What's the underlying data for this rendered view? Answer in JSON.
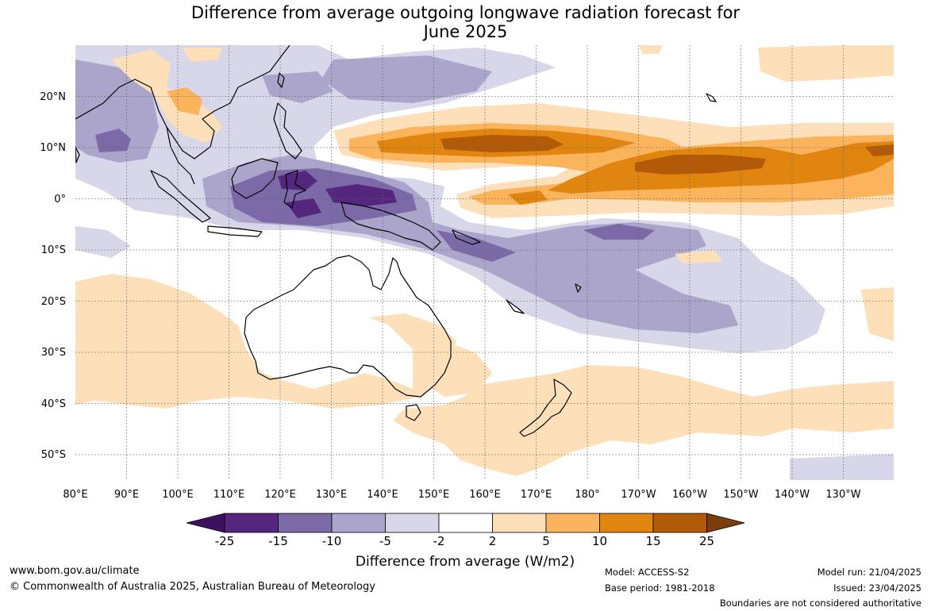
{
  "title_line1": "Difference from average outgoing longwave radiation forecast for",
  "title_line2": "June 2025",
  "map": {
    "lon_labels": [
      "80°E",
      "90°E",
      "100°E",
      "110°E",
      "120°E",
      "130°E",
      "140°E",
      "150°E",
      "160°E",
      "170°E",
      "180°",
      "170°W",
      "160°W",
      "150°W",
      "140°W",
      "130°W"
    ],
    "lat_labels": [
      "20°N",
      "10°N",
      "0°",
      "10°S",
      "20°S",
      "30°S",
      "40°S",
      "50°S"
    ],
    "lon_range": [
      80,
      235
    ],
    "lat_range": [
      -55,
      30
    ],
    "gridlines": true
  },
  "colorbar": {
    "ticks": [
      "-25",
      "-15",
      "-10",
      "-5",
      "-2",
      "2",
      "5",
      "10",
      "15",
      "25"
    ],
    "colors": [
      "#3d1160",
      "#55267e",
      "#7b6aa7",
      "#aba5cc",
      "#d8d7ea",
      "#ffffff",
      "#fde0b9",
      "#fcb45c",
      "#e0850f",
      "#b25a08",
      "#7b3d0a"
    ],
    "label": "Difference from average (W/m2)"
  },
  "footer": {
    "website": "www.bom.gov.au/climate",
    "copyright": "© Commonwealth of Australia 2025, Australian Bureau of Meteorology",
    "model": "Model: ACCESS-S2",
    "base_period": "Base period: 1981-2018",
    "model_run": "Model run: 21/04/2025",
    "issued": "Issued: 23/04/2025",
    "disclaimer": "Boundaries are not considered authoritative"
  }
}
